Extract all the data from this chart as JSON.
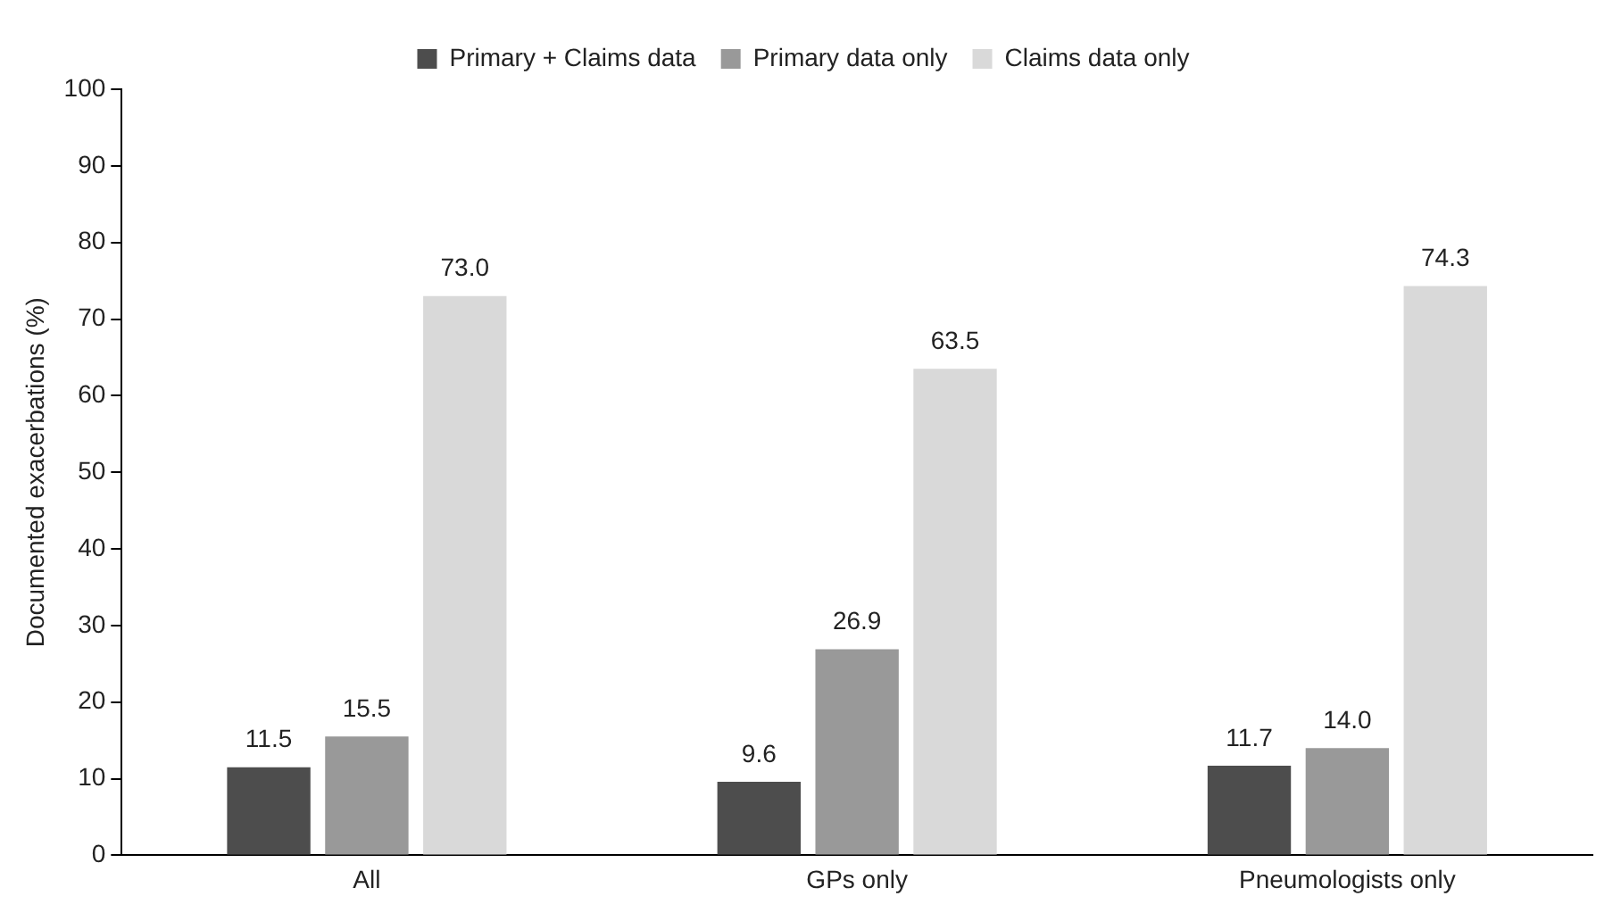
{
  "chart_data": {
    "type": "bar",
    "ylabel": "Documented exacerbations (%)",
    "categories": [
      "All",
      "GPs only",
      "Pneumologists only"
    ],
    "series": [
      {
        "name": "Primary + Claims data",
        "color": "#4d4d4d",
        "values": [
          11.5,
          9.6,
          11.7
        ],
        "value_labels": [
          "11.5",
          "9.6",
          "11.7"
        ]
      },
      {
        "name": "Primary data only",
        "color": "#999999",
        "values": [
          15.5,
          26.9,
          14.0
        ],
        "value_labels": [
          "15.5",
          "26.9",
          "14.0"
        ]
      },
      {
        "name": "Claims data only",
        "color": "#d9d9d9",
        "values": [
          73.0,
          63.5,
          74.3
        ],
        "value_labels": [
          "73.0",
          "63.5",
          "74.3"
        ]
      }
    ],
    "ylim": [
      0,
      100
    ],
    "yticks": [
      0,
      10,
      20,
      30,
      40,
      50,
      60,
      70,
      80,
      90,
      100
    ],
    "grid": false,
    "legend": "top"
  }
}
